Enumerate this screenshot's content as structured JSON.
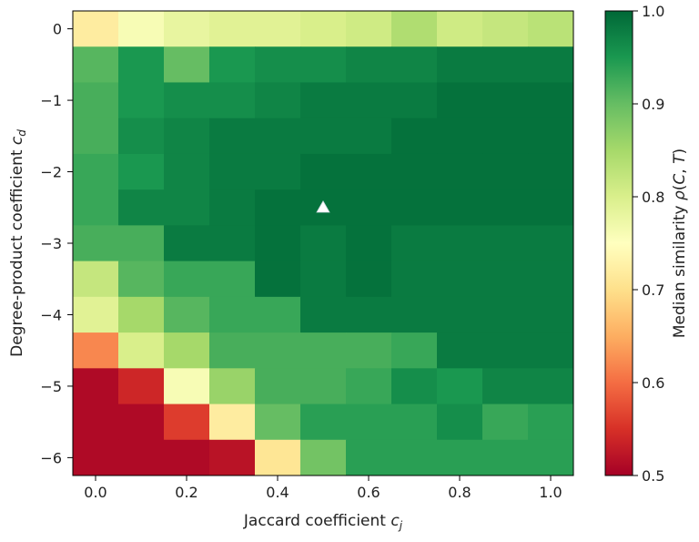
{
  "chart_data": {
    "type": "heatmap",
    "title": "",
    "x": [
      0.0,
      0.1,
      0.2,
      0.3,
      0.4,
      0.5,
      0.6,
      0.7,
      0.8,
      0.9,
      1.0
    ],
    "y": [
      0.0,
      -0.5,
      -1.0,
      -1.5,
      -2.0,
      -2.5,
      -3.0,
      -3.5,
      -4.0,
      -4.5,
      -5.0,
      -5.5,
      -6.0
    ],
    "values": [
      [
        0.72,
        0.76,
        0.78,
        0.79,
        0.79,
        0.8,
        0.81,
        0.84,
        0.81,
        0.82,
        0.83
      ],
      [
        0.91,
        0.95,
        0.9,
        0.95,
        0.96,
        0.96,
        0.97,
        0.97,
        0.98,
        0.98,
        0.98
      ],
      [
        0.92,
        0.95,
        0.96,
        0.96,
        0.97,
        0.98,
        0.98,
        0.98,
        0.99,
        0.99,
        0.99
      ],
      [
        0.92,
        0.96,
        0.97,
        0.98,
        0.98,
        0.98,
        0.98,
        0.99,
        0.99,
        0.99,
        0.99
      ],
      [
        0.93,
        0.95,
        0.97,
        0.98,
        0.98,
        0.99,
        0.99,
        0.99,
        0.99,
        0.99,
        0.99
      ],
      [
        0.93,
        0.97,
        0.97,
        0.98,
        0.99,
        0.99,
        0.99,
        0.99,
        0.99,
        0.99,
        0.99
      ],
      [
        0.92,
        0.92,
        0.98,
        0.98,
        0.99,
        0.98,
        0.99,
        0.98,
        0.98,
        0.98,
        0.98
      ],
      [
        0.82,
        0.91,
        0.93,
        0.93,
        0.99,
        0.98,
        0.99,
        0.98,
        0.98,
        0.98,
        0.98
      ],
      [
        0.79,
        0.85,
        0.91,
        0.93,
        0.93,
        0.98,
        0.98,
        0.98,
        0.98,
        0.98,
        0.98
      ],
      [
        0.62,
        0.8,
        0.85,
        0.92,
        0.92,
        0.92,
        0.92,
        0.93,
        0.98,
        0.98,
        0.98
      ],
      [
        0.51,
        0.54,
        0.76,
        0.86,
        0.92,
        0.92,
        0.93,
        0.96,
        0.95,
        0.97,
        0.97
      ],
      [
        0.51,
        0.51,
        0.56,
        0.72,
        0.9,
        0.94,
        0.94,
        0.94,
        0.96,
        0.93,
        0.94
      ],
      [
        0.51,
        0.51,
        0.51,
        0.52,
        0.71,
        0.89,
        0.94,
        0.94,
        0.94,
        0.94,
        0.94
      ]
    ],
    "xlabel": "Jaccard coefficient $c_j$",
    "ylabel": "Degree-product coefficient $c_d$",
    "xticks": [
      "0.0",
      "0.2",
      "0.4",
      "0.6",
      "0.8",
      "1.0"
    ],
    "xtick_values": [
      0.0,
      0.2,
      0.4,
      0.6,
      0.8,
      1.0
    ],
    "yticks": [
      "0",
      "−1",
      "−2",
      "−3",
      "−4",
      "−5",
      "−6"
    ],
    "ytick_values": [
      0,
      -1,
      -2,
      -3,
      -4,
      -5,
      -6
    ],
    "xlim": [
      -0.05,
      1.05
    ],
    "ylim": [
      -6.25,
      0.25
    ],
    "colorbar": {
      "label": "Median similarity $\\rho(C,T)$",
      "range": [
        0.5,
        1.0
      ],
      "ticks": [
        "0.5",
        "0.6",
        "0.7",
        "0.8",
        "0.9",
        "1.0"
      ],
      "tick_values": [
        0.5,
        0.6,
        0.7,
        0.8,
        0.9,
        1.0
      ],
      "colormap": "RdYlGn"
    },
    "marker": {
      "shape": "triangle",
      "x": 0.5,
      "y": -2.5,
      "color": "#ffffff"
    },
    "grid": false
  }
}
